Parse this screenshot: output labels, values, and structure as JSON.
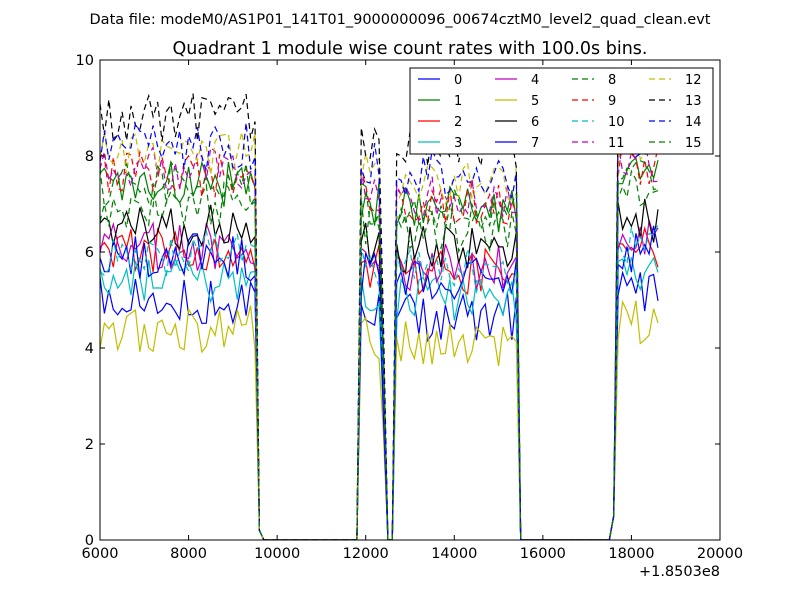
{
  "chart_data": {
    "type": "line",
    "suptitle": "Data file: modeM0/AS1P01_141T01_9000000096_00674cztM0_level2_quad_clean.evt",
    "title": "Quadrant 1 module wise count rates with 100.0s bins.",
    "xlabel": "",
    "ylabel": "",
    "x_offset_label": "+1.8503e8",
    "xlim": [
      6000,
      20000
    ],
    "ylim": [
      0,
      10
    ],
    "xticks": [
      6000,
      8000,
      10000,
      12000,
      14000,
      16000,
      18000,
      20000
    ],
    "yticks": [
      0,
      2,
      4,
      6,
      8,
      10
    ],
    "grid": false,
    "legend": {
      "position": "top-right",
      "columns": 4
    },
    "segments": [
      {
        "x0": 6000,
        "x1": 9500,
        "amp": 1.0
      },
      {
        "x0": 11850,
        "x1": 12400,
        "amp": 0.95
      },
      {
        "x0": 12650,
        "x1": 15400,
        "amp": 0.93
      },
      {
        "x0": 17700,
        "x1": 18600,
        "amp": 1.03
      }
    ],
    "series": [
      {
        "name": "0",
        "color": "#0000ff",
        "dash": false,
        "level": 5.0
      },
      {
        "name": "1",
        "color": "#008000",
        "dash": false,
        "level": 7.4
      },
      {
        "name": "2",
        "color": "#ff0000",
        "dash": false,
        "level": 6.0
      },
      {
        "name": "3",
        "color": "#00bfbf",
        "dash": false,
        "level": 5.4
      },
      {
        "name": "4",
        "color": "#bf00bf",
        "dash": false,
        "level": 6.1
      },
      {
        "name": "5",
        "color": "#bfbf00",
        "dash": false,
        "level": 4.4
      },
      {
        "name": "6",
        "color": "#000000",
        "dash": false,
        "level": 6.5
      },
      {
        "name": "7",
        "color": "#0000ff",
        "dash": false,
        "level": 5.9
      },
      {
        "name": "8",
        "color": "#008000",
        "dash": true,
        "level": 7.0
      },
      {
        "name": "9",
        "color": "#ff0000",
        "dash": true,
        "level": 7.6
      },
      {
        "name": "10",
        "color": "#00bfbf",
        "dash": true,
        "level": 6.0
      },
      {
        "name": "11",
        "color": "#bf00bf",
        "dash": true,
        "level": 7.7
      },
      {
        "name": "12",
        "color": "#bfbf00",
        "dash": true,
        "level": 8.0
      },
      {
        "name": "13",
        "color": "#000000",
        "dash": true,
        "level": 8.8
      },
      {
        "name": "14",
        "color": "#0000ff",
        "dash": true,
        "level": 8.2
      },
      {
        "name": "15",
        "color": "#008000",
        "dash": true,
        "level": 7.4
      }
    ]
  }
}
